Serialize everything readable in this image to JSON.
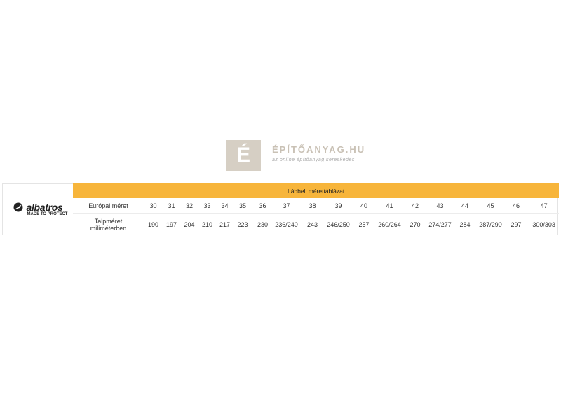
{
  "logo": {
    "brand": "albatros",
    "tagline": "MADE TO PROTECT"
  },
  "table": {
    "title": "Lábbeli mérettáblázat",
    "rows": [
      {
        "label": "Európai méret",
        "values": [
          "30",
          "31",
          "32",
          "33",
          "34",
          "35",
          "36",
          "37",
          "38",
          "39",
          "40",
          "41",
          "42",
          "43",
          "44",
          "45",
          "46",
          "47"
        ]
      },
      {
        "label": "Talpméret miliméterben",
        "values": [
          "190",
          "197",
          "204",
          "210",
          "217",
          "223",
          "230",
          "236/240",
          "243",
          "246/250",
          "257",
          "260/264",
          "270",
          "274/277",
          "284",
          "287/290",
          "297",
          "300/303"
        ]
      }
    ]
  },
  "watermark": {
    "letter": "É",
    "text": "ÉPÍTŐANYAG.HU",
    "subtext": "az online építőanyag kereskedés"
  },
  "colors": {
    "header": "#f7b53b"
  }
}
